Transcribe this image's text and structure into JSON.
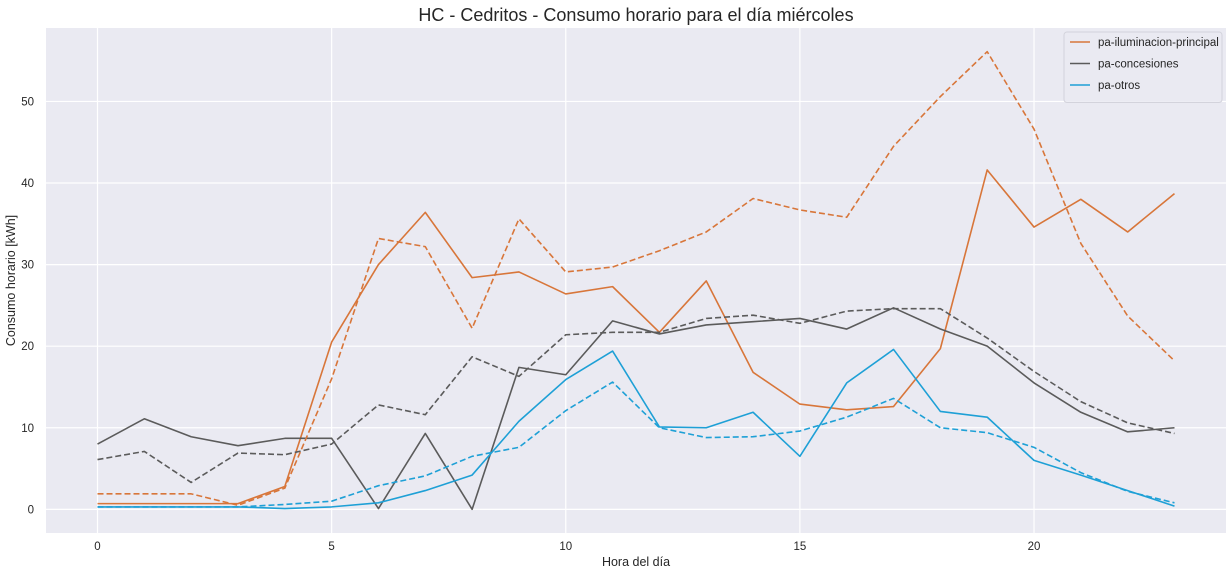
{
  "chart_data": {
    "type": "line",
    "title": "HC - Cedritos - Consumo horario para el día miércoles",
    "xlabel": "Hora del día",
    "ylabel": "Consumo horario [kWh]",
    "xlim": [
      -1.1,
      24.1
    ],
    "ylim": [
      -2.9,
      59.0
    ],
    "xticks": [
      0,
      5,
      10,
      15,
      20
    ],
    "yticks": [
      0,
      10,
      20,
      30,
      40,
      50
    ],
    "grid": true,
    "legend_position": "top-right",
    "x": [
      0,
      1,
      2,
      3,
      4,
      5,
      6,
      7,
      8,
      9,
      10,
      11,
      12,
      13,
      14,
      15,
      16,
      17,
      18,
      19,
      20,
      21,
      22,
      23
    ],
    "series": [
      {
        "name": "pa-iluminacion-principal",
        "color": "#d8763a",
        "style": "solid",
        "values": [
          0.7,
          0.7,
          0.7,
          0.7,
          2.8,
          20.5,
          30.0,
          36.4,
          28.4,
          29.1,
          26.4,
          27.3,
          21.7,
          28.0,
          16.8,
          12.9,
          12.2,
          12.6,
          19.7,
          41.6,
          34.6,
          38.0,
          34.0,
          38.7
        ]
      },
      {
        "name": "pa-concesiones",
        "color": "#5b5b5b",
        "style": "solid",
        "values": [
          8.0,
          11.1,
          8.9,
          7.8,
          8.7,
          8.7,
          0.1,
          9.3,
          0.0,
          17.4,
          16.5,
          23.1,
          21.5,
          22.6,
          23.0,
          23.4,
          22.1,
          24.7,
          22.1,
          20.0,
          15.5,
          11.9,
          9.5,
          10.0
        ]
      },
      {
        "name": "pa-otros",
        "color": "#1ea0d6",
        "style": "solid",
        "values": [
          0.3,
          0.3,
          0.3,
          0.3,
          0.1,
          0.3,
          0.8,
          2.3,
          4.2,
          10.8,
          15.9,
          19.4,
          10.1,
          10.0,
          11.9,
          6.5,
          15.5,
          19.6,
          12.0,
          11.3,
          6.0,
          4.2,
          2.3,
          0.4
        ]
      },
      {
        "name": "",
        "color": "#d8763a",
        "style": "dashed",
        "values": [
          1.9,
          1.9,
          1.9,
          0.5,
          2.6,
          16.0,
          33.2,
          32.2,
          22.2,
          35.6,
          29.1,
          29.7,
          31.7,
          34.0,
          38.1,
          36.7,
          35.8,
          44.5,
          50.6,
          56.1,
          46.6,
          32.6,
          23.7,
          18.2
        ]
      },
      {
        "name": "",
        "color": "#5b5b5b",
        "style": "dashed",
        "values": [
          6.1,
          7.1,
          3.3,
          6.9,
          6.7,
          8.0,
          12.8,
          11.6,
          18.7,
          16.3,
          21.4,
          21.7,
          21.7,
          23.4,
          23.8,
          22.8,
          24.3,
          24.6,
          24.6,
          21.0,
          16.9,
          13.2,
          10.6,
          9.3
        ]
      },
      {
        "name": "",
        "color": "#1ea0d6",
        "style": "dashed",
        "values": [
          0.3,
          0.3,
          0.3,
          0.3,
          0.6,
          1.0,
          2.9,
          4.1,
          6.5,
          7.6,
          12.1,
          15.6,
          10.0,
          8.8,
          8.9,
          9.6,
          11.3,
          13.6,
          10.0,
          9.4,
          7.6,
          4.5,
          2.2,
          0.8
        ]
      }
    ]
  }
}
